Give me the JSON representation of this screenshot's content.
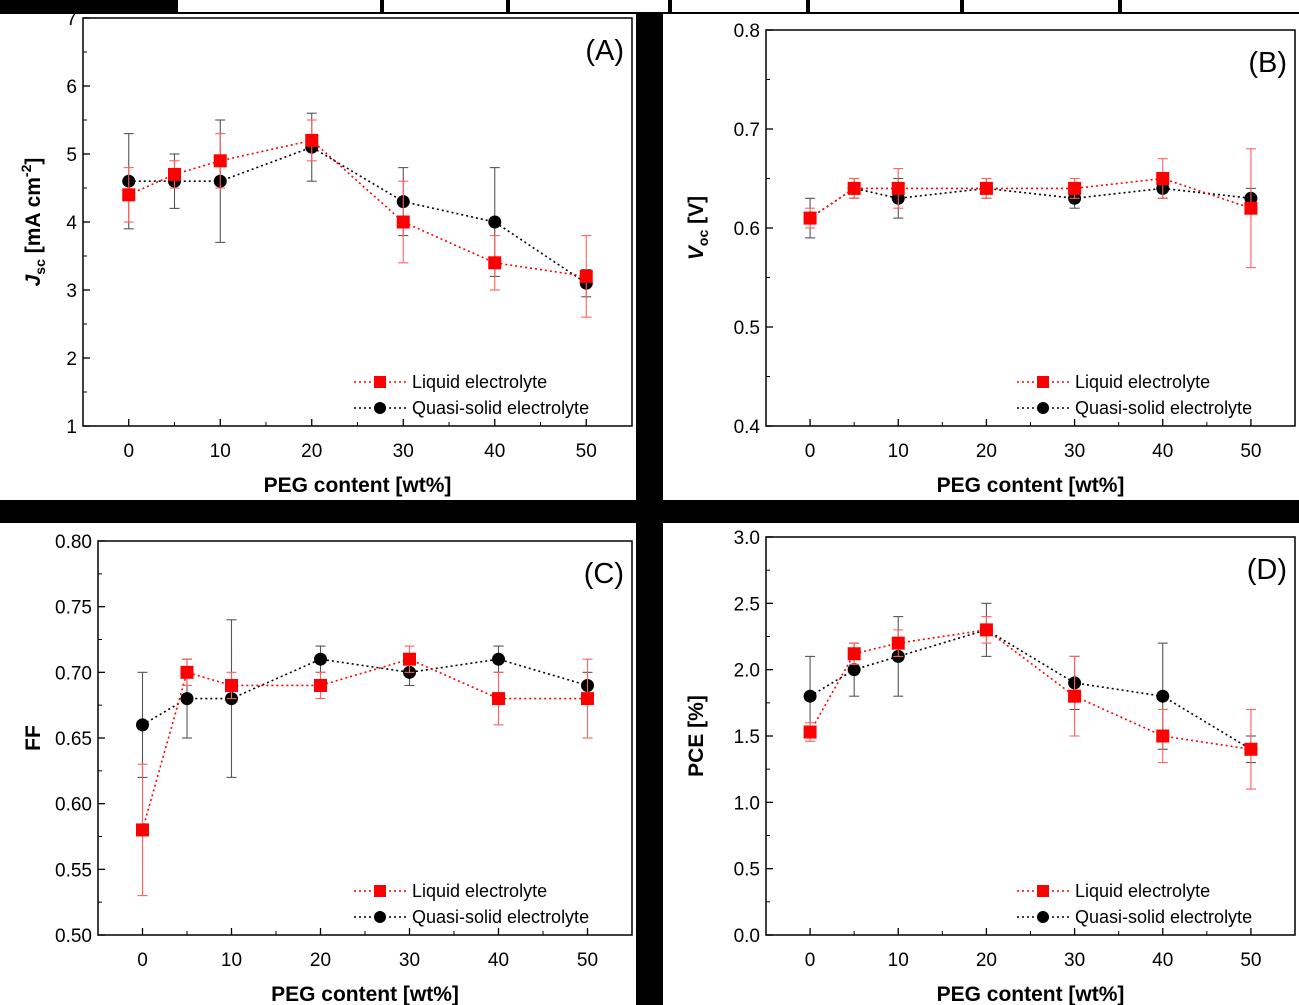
{
  "colors": {
    "liquid": "#ff0000",
    "quasi": "#000000",
    "liquid_line": "#ff0000",
    "quasi_line": "#000000",
    "background": "#ffffff"
  },
  "chart_data": [
    {
      "id": "A",
      "type": "scatter",
      "panel_label": "(A)",
      "xlabel": "PEG content [wt%]",
      "ylabel_parts": [
        {
          "text": "J",
          "italic": true,
          "bold": true
        },
        {
          "text": "sc",
          "sub": true,
          "bold": true
        },
        {
          "text": " [mA cm",
          "bold": true
        },
        {
          "text": "-2",
          "sup": true,
          "bold": true
        },
        {
          "text": "]",
          "bold": true
        }
      ],
      "xlim": [
        -5,
        55
      ],
      "ylim": [
        1,
        7
      ],
      "xticks": [
        0,
        10,
        20,
        30,
        40,
        50
      ],
      "xtick_labels": [
        "0",
        "10",
        "20",
        "30",
        "40",
        "50"
      ],
      "yticks": [
        1,
        2,
        3,
        4,
        5,
        6,
        7
      ],
      "ytick_labels": [
        "1",
        "2",
        "3",
        "4",
        "5",
        "6",
        "7"
      ],
      "legend_position": "bottom-right",
      "x": [
        0,
        5,
        10,
        20,
        30,
        40,
        50
      ],
      "series": [
        {
          "name": "Liquid electrolyte",
          "key": "liquid",
          "marker": "square",
          "values": [
            4.4,
            4.7,
            4.9,
            5.2,
            4.0,
            3.4,
            3.2
          ],
          "err": [
            0.4,
            0.2,
            0.4,
            0.3,
            0.6,
            0.4,
            0.6
          ]
        },
        {
          "name": "Quasi-solid electrolyte",
          "key": "quasi",
          "marker": "circle",
          "values": [
            4.6,
            4.6,
            4.6,
            5.1,
            4.3,
            4.0,
            3.1
          ],
          "err": [
            0.7,
            0.4,
            0.9,
            0.5,
            0.5,
            0.8,
            0.2
          ]
        }
      ]
    },
    {
      "id": "B",
      "type": "scatter",
      "panel_label": "(B)",
      "xlabel": "PEG content [wt%]",
      "ylabel_parts": [
        {
          "text": "V",
          "italic": true,
          "bold": true
        },
        {
          "text": "oc",
          "sub": true,
          "bold": true
        },
        {
          "text": " [V]",
          "bold": true
        }
      ],
      "xlim": [
        -5,
        55
      ],
      "ylim": [
        0.4,
        0.8
      ],
      "xticks": [
        0,
        10,
        20,
        30,
        40,
        50
      ],
      "xtick_labels": [
        "0",
        "10",
        "20",
        "30",
        "40",
        "50"
      ],
      "yticks": [
        0.4,
        0.5,
        0.6,
        0.7,
        0.8
      ],
      "ytick_labels": [
        "0.4",
        "0.5",
        "0.6",
        "0.7",
        "0.8"
      ],
      "legend_position": "bottom-right",
      "x": [
        0,
        5,
        10,
        20,
        30,
        40,
        50
      ],
      "series": [
        {
          "name": "Liquid electrolyte",
          "key": "liquid",
          "marker": "square",
          "values": [
            0.61,
            0.64,
            0.64,
            0.64,
            0.64,
            0.65,
            0.62
          ],
          "err": [
            0.01,
            0.01,
            0.02,
            0.01,
            0.01,
            0.02,
            0.06
          ]
        },
        {
          "name": "Quasi-solid electrolyte",
          "key": "quasi",
          "marker": "circle",
          "values": [
            0.61,
            0.64,
            0.63,
            0.64,
            0.63,
            0.64,
            0.63
          ],
          "err": [
            0.02,
            0.01,
            0.02,
            0.01,
            0.01,
            0.01,
            0.01
          ]
        }
      ]
    },
    {
      "id": "C",
      "type": "scatter",
      "panel_label": "(C)",
      "xlabel": "PEG content [wt%]",
      "ylabel_parts": [
        {
          "text": "FF",
          "bold": true
        }
      ],
      "xlim": [
        -5,
        55
      ],
      "ylim": [
        0.5,
        0.8
      ],
      "xticks": [
        0,
        10,
        20,
        30,
        40,
        50
      ],
      "xtick_labels": [
        "0",
        "10",
        "20",
        "30",
        "40",
        "50"
      ],
      "yticks": [
        0.5,
        0.55,
        0.6,
        0.65,
        0.7,
        0.75,
        0.8
      ],
      "ytick_labels": [
        "0.50",
        "0.55",
        "0.60",
        "0.65",
        "0.70",
        "0.75",
        "0.80"
      ],
      "legend_position": "bottom-right",
      "x": [
        0,
        5,
        10,
        20,
        30,
        40,
        50
      ],
      "series": [
        {
          "name": "Liquid electrolyte",
          "key": "liquid",
          "marker": "square",
          "values": [
            0.58,
            0.7,
            0.69,
            0.69,
            0.71,
            0.68,
            0.68
          ],
          "err": [
            0.05,
            0.01,
            0.01,
            0.01,
            0.01,
            0.02,
            0.03
          ]
        },
        {
          "name": "Quasi-solid electrolyte",
          "key": "quasi",
          "marker": "circle",
          "values": [
            0.66,
            0.68,
            0.68,
            0.71,
            0.7,
            0.71,
            0.69
          ],
          "err": [
            0.04,
            0.03,
            0.06,
            0.01,
            0.01,
            0.01,
            0.01
          ]
        }
      ]
    },
    {
      "id": "D",
      "type": "scatter",
      "panel_label": "(D)",
      "xlabel": "PEG content [wt%]",
      "ylabel_parts": [
        {
          "text": "PCE [%]",
          "bold": true
        }
      ],
      "xlim": [
        -5,
        55
      ],
      "ylim": [
        0,
        3
      ],
      "xticks": [
        0,
        10,
        20,
        30,
        40,
        50
      ],
      "xtick_labels": [
        "0",
        "10",
        "20",
        "30",
        "40",
        "50"
      ],
      "yticks": [
        0,
        0.5,
        1,
        1.5,
        2,
        2.5,
        3
      ],
      "ytick_labels": [
        "0.0",
        "0.5",
        "1.0",
        "1.5",
        "2.0",
        "2.5",
        "3.0"
      ],
      "legend_position": "bottom-right",
      "x": [
        0,
        5,
        10,
        20,
        30,
        40,
        50
      ],
      "series": [
        {
          "name": "Liquid electrolyte",
          "key": "liquid",
          "marker": "square",
          "values": [
            1.53,
            2.12,
            2.2,
            2.3,
            1.8,
            1.5,
            1.4
          ],
          "err": [
            0.07,
            0.08,
            0.1,
            0.1,
            0.3,
            0.2,
            0.3
          ]
        },
        {
          "name": "Quasi-solid electrolyte",
          "key": "quasi",
          "marker": "circle",
          "values": [
            1.8,
            2.0,
            2.1,
            2.3,
            1.9,
            1.8,
            1.4
          ],
          "err": [
            0.3,
            0.2,
            0.3,
            0.2,
            0.2,
            0.4,
            0.1
          ]
        }
      ]
    }
  ]
}
